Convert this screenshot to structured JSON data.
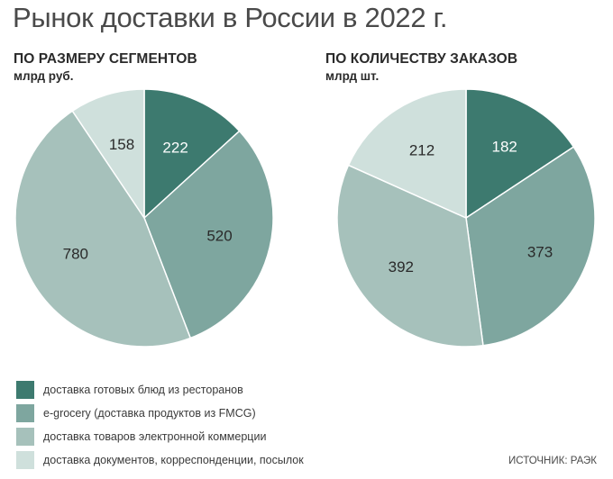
{
  "title": "Рынок доставки в России в 2022 г.",
  "source": "ИСТОЧНИК: РАЭК",
  "legend": [
    {
      "label": "доставка готовых блюд из ресторанов",
      "color": "#3d7a6f"
    },
    {
      "label": "e-grocery (доставка продуктов из FMCG)",
      "color": "#7ea69f"
    },
    {
      "label": "доставка товаров электронной коммерции",
      "color": "#a6c1bb"
    },
    {
      "label": "доставка документов, корреспонденции, посылок",
      "color": "#cfe0dc"
    }
  ],
  "chart_data": [
    {
      "type": "pie",
      "title": "ПО РАЗМЕРУ СЕГМЕНТОВ",
      "subtitle": "млрд руб.",
      "categories": [
        "доставка готовых блюд из ресторанов",
        "e-grocery (доставка продуктов из FMCG)",
        "доставка товаров электронной коммерции",
        "доставка документов, корреспонденции, посылок"
      ],
      "values": [
        222,
        520,
        780,
        158
      ],
      "colors": [
        "#3d7a6f",
        "#7ea69f",
        "#a6c1bb",
        "#cfe0dc"
      ]
    },
    {
      "type": "pie",
      "title": "ПО КОЛИЧЕСТВУ ЗАКАЗОВ",
      "subtitle": "млрд шт.",
      "categories": [
        "доставка готовых блюд из ресторанов",
        "e-grocery (доставка продуктов из FMCG)",
        "доставка товаров электронной коммерции",
        "доставка документов, корреспонденции, посылок"
      ],
      "values": [
        182,
        373,
        392,
        212
      ],
      "colors": [
        "#3d7a6f",
        "#7ea69f",
        "#a6c1bb",
        "#cfe0dc"
      ]
    }
  ]
}
